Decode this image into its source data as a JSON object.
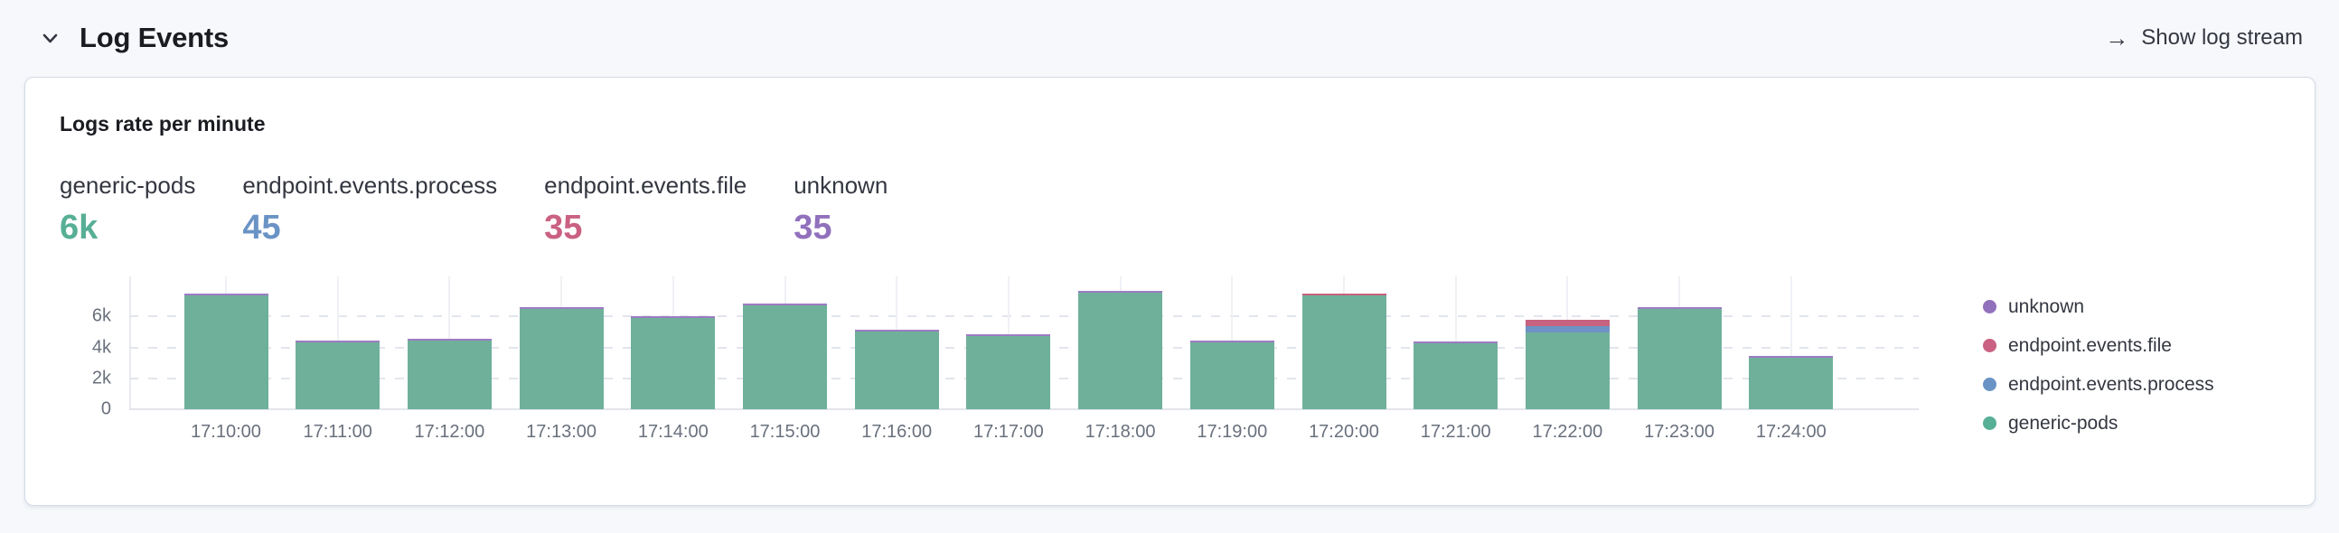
{
  "header": {
    "title": "Log Events",
    "collapse_icon": "chevron-down",
    "link": {
      "label": "Show log stream",
      "icon": "arrow-right"
    }
  },
  "card": {
    "title": "Logs rate per minute",
    "stats": [
      {
        "label": "generic-pods",
        "value": "6k",
        "color": "#57AF95"
      },
      {
        "label": "endpoint.events.process",
        "value": "45",
        "color": "#6A93C5"
      },
      {
        "label": "endpoint.events.file",
        "value": "35",
        "color": "#CA6182"
      },
      {
        "label": "unknown",
        "value": "35",
        "color": "#9171BC"
      }
    ],
    "legend": [
      {
        "label": "unknown",
        "color": "#9171BC"
      },
      {
        "label": "endpoint.events.file",
        "color": "#CA6182"
      },
      {
        "label": "endpoint.events.process",
        "color": "#6A93C5"
      },
      {
        "label": "generic-pods",
        "color": "#57AF95"
      }
    ]
  },
  "chart_data": {
    "type": "bar",
    "stacked": true,
    "title": "Logs rate per minute",
    "categories": [
      "17:10:00",
      "17:11:00",
      "17:12:00",
      "17:13:00",
      "17:14:00",
      "17:15:00",
      "17:16:00",
      "17:17:00",
      "17:18:00",
      "17:19:00",
      "17:20:00",
      "17:21:00",
      "17:22:00",
      "17:23:00",
      "17:24:00"
    ],
    "series": [
      {
        "name": "generic-pods",
        "color": "#6FB09B",
        "values": [
          7400,
          4300,
          4450,
          6500,
          5900,
          6700,
          5050,
          4750,
          7550,
          4300,
          7350,
          4250,
          5000,
          6500,
          3350
        ]
      },
      {
        "name": "endpoint.events.process",
        "color": "#6E93C5",
        "values": [
          0,
          0,
          0,
          0,
          0,
          0,
          0,
          0,
          0,
          0,
          0,
          0,
          400,
          0,
          0
        ]
      },
      {
        "name": "endpoint.events.file",
        "color": "#C7627F",
        "values": [
          0,
          0,
          0,
          0,
          0,
          0,
          0,
          0,
          0,
          0,
          100,
          0,
          400,
          0,
          0
        ]
      },
      {
        "name": "unknown",
        "color": "#9C7CC4",
        "values": [
          80,
          80,
          80,
          80,
          100,
          80,
          80,
          80,
          100,
          80,
          0,
          100,
          0,
          80,
          80
        ]
      }
    ],
    "xlabel": "",
    "ylabel": "",
    "y_ticks": [
      "0",
      "2k",
      "4k",
      "6k"
    ],
    "y_tick_values": [
      0,
      2000,
      4000,
      6000
    ],
    "ylim": [
      0,
      8600
    ],
    "grid": "dashed-horizontal",
    "legend_position": "right"
  },
  "colors": {
    "page_background": "#F7F8FC",
    "card_background": "#FFFFFF",
    "card_border": "#D3DAE6",
    "text_primary": "#1A1C21",
    "text_secondary": "#343741",
    "tick_text": "#69707D",
    "accent_green": "#57AF95",
    "accent_blue": "#6A93C5",
    "accent_pink": "#CA6182",
    "accent_purple": "#9171BC"
  }
}
